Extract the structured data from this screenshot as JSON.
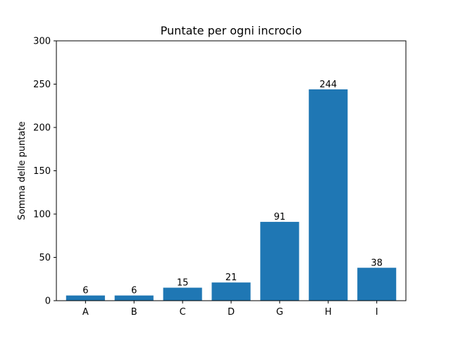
{
  "chart_data": {
    "type": "bar",
    "title": "Puntate per ogni incrocio",
    "xlabel": "",
    "ylabel": "Somma delle puntate",
    "categories": [
      "A",
      "B",
      "C",
      "D",
      "G",
      "H",
      "I"
    ],
    "values": [
      6,
      6,
      15,
      21,
      91,
      244,
      38
    ],
    "data_labels": [
      "6",
      "6",
      "15",
      "21",
      "91",
      "244",
      "38"
    ],
    "ylim": [
      0,
      300
    ],
    "yticks": [
      0,
      50,
      100,
      150,
      200,
      250,
      300
    ],
    "ytick_labels": [
      "0",
      "50",
      "100",
      "150",
      "200",
      "250",
      "300"
    ],
    "bar_color": "#1f77b4",
    "grid": false,
    "legend": "none"
  }
}
